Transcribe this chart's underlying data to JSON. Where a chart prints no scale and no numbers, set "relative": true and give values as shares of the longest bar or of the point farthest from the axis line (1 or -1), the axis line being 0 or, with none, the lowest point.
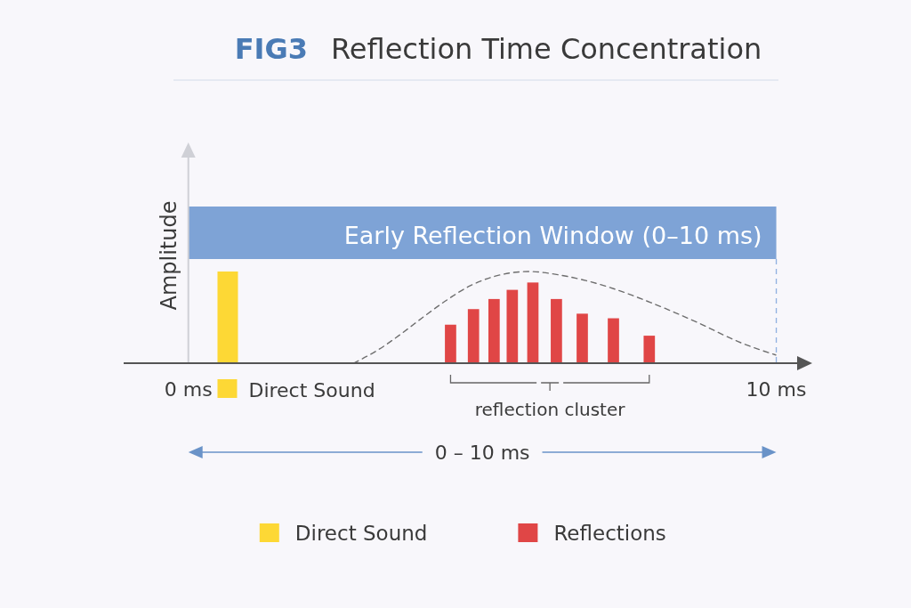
{
  "chart_data": {
    "type": "bar",
    "title": "FIG3 Reflection Time Concentration",
    "ylabel": "Amplitude",
    "relative": true,
    "xlim": [
      -1.1,
      10.4
    ],
    "xticks": [
      {
        "value": 0,
        "label": "0 ms"
      },
      {
        "value": 10,
        "label": "10 ms"
      }
    ],
    "series": [
      {
        "name": "Direct Sound",
        "color": "#fdd835",
        "x": [
          0.67
        ],
        "values": [
          1
        ]
      },
      {
        "name": "Reflections",
        "color": "#e04646",
        "x": [
          4.46,
          4.85,
          5.2,
          5.51,
          5.86,
          6.26,
          6.7,
          7.23,
          7.84
        ],
        "values": [
          0.42,
          0.59,
          0.7,
          0.8,
          0.88,
          0.7,
          0.54,
          0.49,
          0.3
        ]
      },
      {
        "type": "line",
        "color": "#6e6e6e",
        "line_style": "dashed",
        "x": [
          2.81,
          3.24,
          3.62,
          4.01,
          4.4,
          4.78,
          5.17,
          5.79,
          6.33,
          7.1,
          7.87,
          8.64,
          9.41,
          9.99
        ],
        "values": [
          0,
          0.15,
          0.32,
          0.51,
          0.69,
          0.84,
          0.94,
          1,
          0.96,
          0.84,
          0.66,
          0.45,
          0.22,
          0.09
        ]
      }
    ],
    "bands": [
      {
        "axis": "x",
        "from": 0,
        "to": 10,
        "label": "Early Reflection Window (0–10 ms)",
        "color": "#7ea3d6"
      }
    ],
    "ref_lines": [
      {
        "axis": "x",
        "value": 10,
        "color": "#8fb0e0",
        "line_style": "dashed"
      }
    ],
    "annotations": [
      "reflection cluster",
      "0 – 10 ms"
    ],
    "legend": "bottom"
  }
}
